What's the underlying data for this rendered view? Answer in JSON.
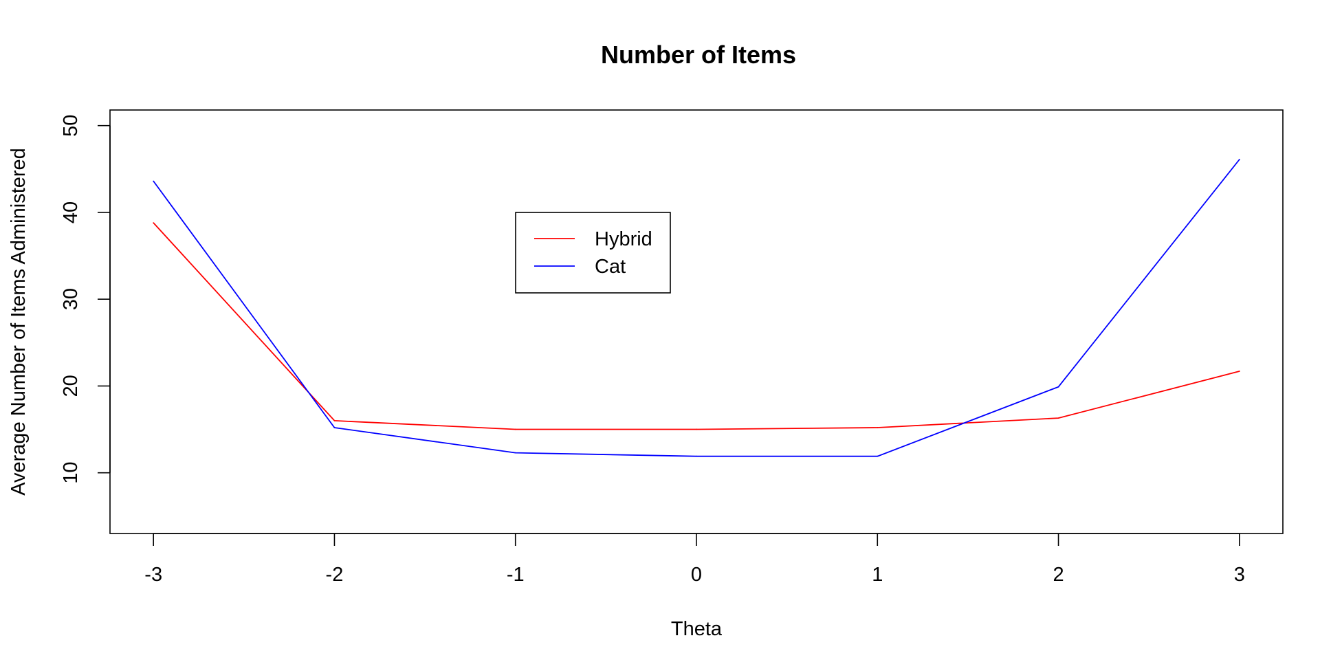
{
  "chart_data": {
    "type": "line",
    "title": "Number of Items",
    "xlabel": "Theta",
    "ylabel": "Average Number of Items Administered",
    "x": [
      -3,
      -2,
      -1,
      0,
      1,
      2,
      3
    ],
    "xticks": [
      -3,
      -2,
      -1,
      0,
      1,
      2,
      3
    ],
    "yticks": [
      10,
      20,
      30,
      40,
      50
    ],
    "xlim": [
      -3.24,
      3.24
    ],
    "ylim": [
      3,
      51.8
    ],
    "grid": false,
    "legend_position": "upper-center",
    "series": [
      {
        "name": "Hybrid",
        "color": "#ff0000",
        "values": [
          38.8,
          16.0,
          15.0,
          15.0,
          15.2,
          16.3,
          21.7
        ]
      },
      {
        "name": "Cat",
        "color": "#0000ff",
        "values": [
          43.6,
          15.2,
          12.3,
          11.9,
          11.9,
          19.9,
          46.1
        ]
      }
    ]
  }
}
